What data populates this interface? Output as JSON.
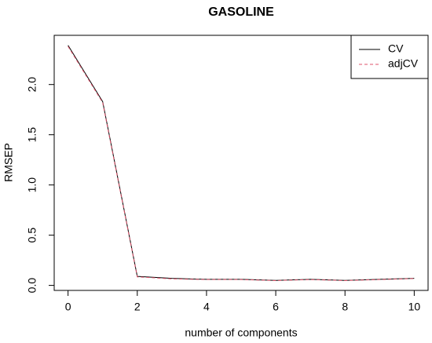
{
  "chart_data": {
    "type": "line",
    "title": "GASOLINE",
    "x_label": "number of components",
    "y_label": "RMSEP",
    "x": [
      0,
      1,
      2,
      3,
      4,
      5,
      6,
      7,
      8,
      9,
      10
    ],
    "series": [
      {
        "name": "CV",
        "color": "#000000",
        "linestyle": "solid",
        "values": [
          2.39,
          1.83,
          0.09,
          0.07,
          0.06,
          0.06,
          0.05,
          0.06,
          0.05,
          0.06,
          0.07
        ]
      },
      {
        "name": "adjCV",
        "color": "#df536b",
        "linestyle": "dashed",
        "values": [
          2.38,
          1.82,
          0.085,
          0.065,
          0.058,
          0.058,
          0.048,
          0.058,
          0.048,
          0.058,
          0.068
        ]
      }
    ],
    "xlim": [
      -0.4,
      10.4
    ],
    "ylim": [
      -0.05,
      2.49
    ],
    "xticks": [
      0,
      2,
      4,
      6,
      8,
      10
    ],
    "yticks": [
      {
        "value": 0,
        "label": "0.0"
      },
      0.5,
      {
        "value": 1,
        "label": "1.0"
      },
      1.5,
      {
        "value": 2,
        "label": "2.0"
      }
    ],
    "legend": "top-right"
  }
}
